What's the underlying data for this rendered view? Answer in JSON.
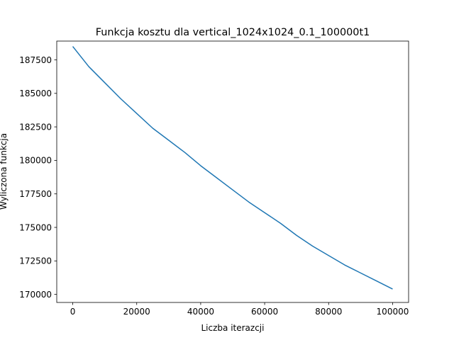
{
  "chart_data": {
    "type": "line",
    "title": "Funkcja kosztu dla vertical_1024x1024_0.1_100000t1",
    "xlabel": "Liczba iterazcji",
    "ylabel": "Wyliczona funkcja",
    "xlim": [
      -5000,
      105000
    ],
    "ylim": [
      169400,
      188900
    ],
    "x_ticks": [
      0,
      20000,
      40000,
      60000,
      80000,
      100000
    ],
    "y_ticks": [
      170000,
      172500,
      175000,
      177500,
      180000,
      182500,
      185000,
      187500
    ],
    "grid": false,
    "series": [
      {
        "color": "#1f77b4",
        "x": [
          0,
          5000,
          10000,
          15000,
          20000,
          25000,
          30000,
          35000,
          40000,
          45000,
          50000,
          55000,
          60000,
          65000,
          70000,
          75000,
          80000,
          85000,
          90000,
          95000,
          100000
        ],
        "y": [
          188500,
          187000,
          185800,
          184600,
          183500,
          182400,
          181500,
          180600,
          179600,
          178700,
          177800,
          176900,
          176100,
          175300,
          174400,
          173600,
          172900,
          172200,
          171600,
          171000,
          170400
        ]
      }
    ]
  }
}
